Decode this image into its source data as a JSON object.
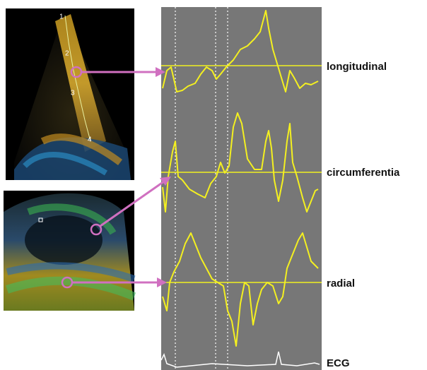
{
  "trace_labels": [
    "longitudinal",
    "circumferentia",
    "radial",
    "ECG"
  ],
  "image_markers": [
    "1",
    "2",
    "3",
    "4"
  ]
}
